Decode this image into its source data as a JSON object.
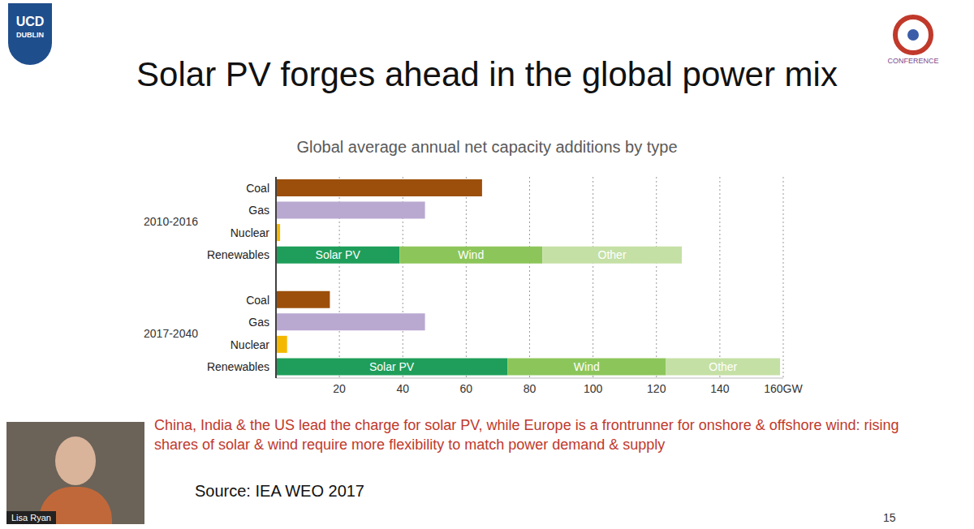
{
  "chart_data": {
    "type": "bar",
    "orientation": "horizontal",
    "stacked": true,
    "grid": true,
    "title": "Global average annual net capacity additions by type",
    "categories": [
      "Coal",
      "Gas",
      "Nuclear",
      "Renewables",
      null,
      "Coal",
      "Gas",
      "Nuclear",
      "Renewables"
    ],
    "group_labels": [
      "2010-2016",
      "2017-2040"
    ],
    "series": [
      {
        "name": "Coal",
        "color": "#9c4f0b",
        "values": [
          65,
          null,
          null,
          null,
          null,
          17,
          null,
          null,
          null
        ]
      },
      {
        "name": "Gas",
        "color": "#b9a8d0",
        "values": [
          null,
          47,
          null,
          null,
          null,
          null,
          47,
          null,
          null
        ]
      },
      {
        "name": "Nuclear",
        "color": "#f5b800",
        "values": [
          null,
          null,
          1.3,
          null,
          null,
          null,
          null,
          3.5,
          null
        ]
      },
      {
        "name": "Solar PV",
        "color": "#1e9e5a",
        "values": [
          null,
          null,
          null,
          39,
          null,
          null,
          null,
          null,
          73
        ]
      },
      {
        "name": "Wind",
        "color": "#8cc65a",
        "values": [
          null,
          null,
          null,
          45,
          null,
          null,
          null,
          null,
          50
        ]
      },
      {
        "name": "Other",
        "color": "#c5e0a5",
        "values": [
          null,
          null,
          null,
          44,
          null,
          null,
          null,
          null,
          36
        ]
      }
    ],
    "xlim": [
      0,
      160
    ],
    "xticks": [
      20,
      40,
      60,
      80,
      100,
      120,
      140,
      {
        "value": 160,
        "label": "160GW"
      }
    ]
  },
  "slide": {
    "title": "Solar PV forges ahead in the global power mix",
    "caption": "China, India & the US lead the charge for solar PV, while Europe is a frontrunner for onshore & offshore wind: rising shares of solar & wind require more flexibility to match power demand & supply",
    "source": "Source: IEA WEO 2017",
    "logo": [
      "UCD",
      "DUBLIN"
    ],
    "conference": "CONFERENCE",
    "speaker": "Lisa Ryan",
    "page": "15"
  }
}
